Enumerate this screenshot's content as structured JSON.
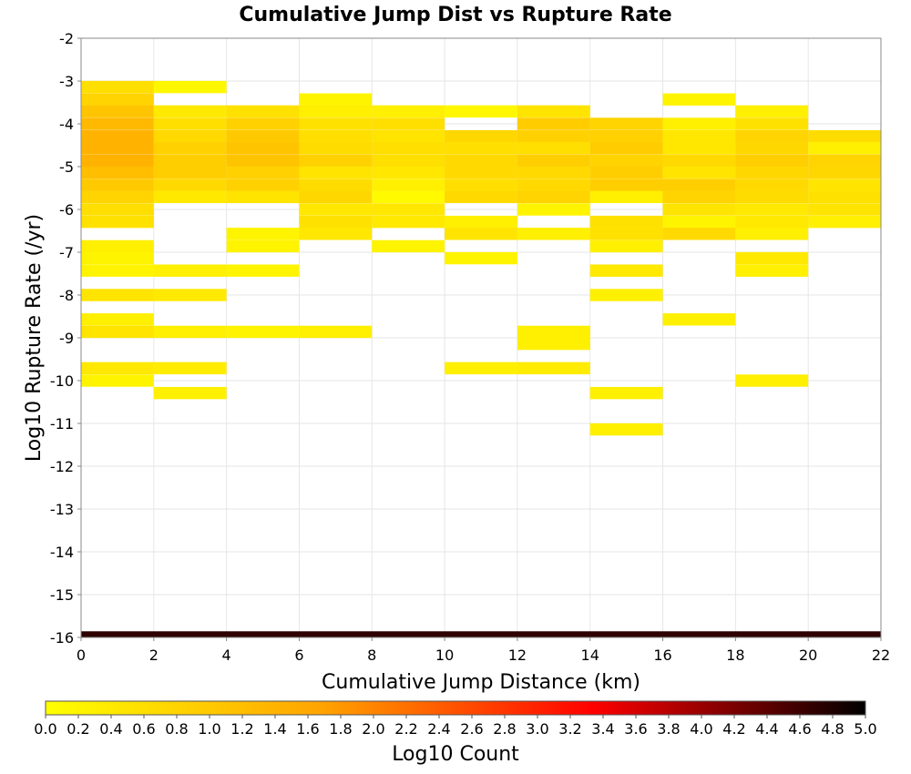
{
  "chart_data": {
    "type": "heatmap",
    "title": "Cumulative Jump Dist vs Rupture Rate",
    "xlabel": "Cumulative Jump Distance (km)",
    "ylabel": "Log10 Rupture Rate (/yr)",
    "xlim": [
      0,
      22
    ],
    "ylim": [
      -16,
      -2
    ],
    "x_ticks": [
      "0",
      "2",
      "4",
      "6",
      "8",
      "10",
      "12",
      "14",
      "16",
      "18",
      "20",
      "22"
    ],
    "y_ticks": [
      "-16",
      "-15",
      "-14",
      "-13",
      "-12",
      "-11",
      "-10",
      "-9",
      "-8",
      "-7",
      "-6",
      "-5",
      "-4",
      "-3",
      "-2"
    ],
    "x_bin_width": 2,
    "y_bin_height": 0.2857,
    "grid": true,
    "colorbar": {
      "label": "Log10 Count",
      "range": [
        0,
        5
      ],
      "ticks": [
        "0.0",
        "0.2",
        "0.4",
        "0.6",
        "0.8",
        "1.0",
        "1.2",
        "1.4",
        "1.6",
        "1.8",
        "2.0",
        "2.2",
        "2.4",
        "2.6",
        "2.8",
        "3.0",
        "3.2",
        "3.4",
        "3.6",
        "3.8",
        "4.0",
        "4.2",
        "4.4",
        "4.6",
        "4.8",
        "5.0"
      ],
      "colors": [
        "#ffff00",
        "#ffa500",
        "#ff0000",
        "#000000"
      ]
    },
    "cells": [
      [
        0,
        -3.14,
        0.6
      ],
      [
        0,
        -3.43,
        0.8
      ],
      [
        0,
        -3.71,
        1.1
      ],
      [
        0,
        -4.0,
        1.3
      ],
      [
        0,
        -4.29,
        1.4
      ],
      [
        0,
        -4.57,
        1.4
      ],
      [
        0,
        -4.86,
        1.4
      ],
      [
        0,
        -5.14,
        1.2
      ],
      [
        0,
        -5.43,
        1.0
      ],
      [
        0,
        -5.71,
        0.8
      ],
      [
        0,
        -6.0,
        0.6
      ],
      [
        0,
        -6.29,
        0.55
      ],
      [
        0,
        -6.86,
        0.3
      ],
      [
        0,
        -7.14,
        0.2
      ],
      [
        0,
        -7.43,
        0.2
      ],
      [
        0,
        -8.0,
        0.5
      ],
      [
        0,
        -8.57,
        0.3
      ],
      [
        0,
        -8.86,
        0.5
      ],
      [
        0,
        -9.71,
        0.4
      ],
      [
        0,
        -10.0,
        0.2
      ],
      [
        2,
        -3.14,
        0.15
      ],
      [
        2,
        -3.71,
        0.4
      ],
      [
        2,
        -4.0,
        0.6
      ],
      [
        2,
        -4.29,
        0.7
      ],
      [
        2,
        -4.57,
        0.85
      ],
      [
        2,
        -4.86,
        0.9
      ],
      [
        2,
        -5.14,
        0.9
      ],
      [
        2,
        -5.43,
        0.7
      ],
      [
        2,
        -5.71,
        0.4
      ],
      [
        2,
        -7.43,
        0.3
      ],
      [
        2,
        -8.0,
        0.4
      ],
      [
        2,
        -8.86,
        0.3
      ],
      [
        2,
        -9.71,
        0.35
      ],
      [
        2,
        -10.29,
        0.3
      ],
      [
        4,
        -3.71,
        0.55
      ],
      [
        4,
        -4.0,
        0.85
      ],
      [
        4,
        -4.29,
        1.0
      ],
      [
        4,
        -4.57,
        1.1
      ],
      [
        4,
        -4.86,
        1.1
      ],
      [
        4,
        -5.14,
        0.85
      ],
      [
        4,
        -5.43,
        0.85
      ],
      [
        4,
        -5.71,
        0.5
      ],
      [
        4,
        -6.57,
        0.2
      ],
      [
        4,
        -6.86,
        0.2
      ],
      [
        4,
        -7.43,
        0.2
      ],
      [
        4,
        -8.86,
        0.2
      ],
      [
        6,
        -3.43,
        0.2
      ],
      [
        6,
        -3.71,
        0.3
      ],
      [
        6,
        -4.0,
        0.55
      ],
      [
        6,
        -4.29,
        0.6
      ],
      [
        6,
        -4.57,
        0.65
      ],
      [
        6,
        -4.86,
        0.85
      ],
      [
        6,
        -5.14,
        0.5
      ],
      [
        6,
        -5.43,
        0.65
      ],
      [
        6,
        -5.71,
        0.75
      ],
      [
        6,
        -6.0,
        0.45
      ],
      [
        6,
        -6.29,
        0.55
      ],
      [
        6,
        -6.57,
        0.45
      ],
      [
        6,
        -8.86,
        0.3
      ],
      [
        8,
        -3.71,
        0.3
      ],
      [
        8,
        -4.0,
        0.6
      ],
      [
        8,
        -4.29,
        0.5
      ],
      [
        8,
        -4.57,
        0.6
      ],
      [
        8,
        -4.86,
        0.6
      ],
      [
        8,
        -5.14,
        0.45
      ],
      [
        8,
        -5.43,
        0.3
      ],
      [
        8,
        -5.71,
        0.1
      ],
      [
        8,
        -6.0,
        0.45
      ],
      [
        8,
        -6.29,
        0.4
      ],
      [
        8,
        -6.86,
        0.2
      ],
      [
        10,
        -3.71,
        0.15
      ],
      [
        10,
        -4.29,
        0.75
      ],
      [
        10,
        -4.57,
        0.6
      ],
      [
        10,
        -4.86,
        0.7
      ],
      [
        10,
        -5.14,
        0.7
      ],
      [
        10,
        -5.43,
        0.6
      ],
      [
        10,
        -5.71,
        0.7
      ],
      [
        10,
        -6.29,
        0.3
      ],
      [
        10,
        -6.57,
        0.5
      ],
      [
        10,
        -7.14,
        0.2
      ],
      [
        10,
        -9.71,
        0.3
      ],
      [
        12,
        -3.71,
        0.5
      ],
      [
        12,
        -4.0,
        0.95
      ],
      [
        12,
        -4.29,
        0.85
      ],
      [
        12,
        -4.57,
        0.6
      ],
      [
        12,
        -4.86,
        0.9
      ],
      [
        12,
        -5.14,
        0.7
      ],
      [
        12,
        -5.43,
        0.7
      ],
      [
        12,
        -5.71,
        0.8
      ],
      [
        12,
        -6.0,
        0.2
      ],
      [
        12,
        -6.57,
        0.3
      ],
      [
        12,
        -8.86,
        0.3
      ],
      [
        12,
        -9.14,
        0.3
      ],
      [
        12,
        -9.71,
        0.35
      ],
      [
        14,
        -4.0,
        0.8
      ],
      [
        14,
        -4.29,
        0.85
      ],
      [
        14,
        -4.57,
        0.95
      ],
      [
        14,
        -4.86,
        0.8
      ],
      [
        14,
        -5.14,
        0.9
      ],
      [
        14,
        -5.43,
        0.9
      ],
      [
        14,
        -5.71,
        0.3
      ],
      [
        14,
        -6.29,
        0.55
      ],
      [
        14,
        -6.57,
        0.55
      ],
      [
        14,
        -6.86,
        0.3
      ],
      [
        14,
        -7.43,
        0.4
      ],
      [
        14,
        -8.0,
        0.3
      ],
      [
        14,
        -10.29,
        0.3
      ],
      [
        14,
        -11.14,
        0.3
      ],
      [
        16,
        -3.43,
        0.2
      ],
      [
        16,
        -4.0,
        0.3
      ],
      [
        16,
        -4.29,
        0.45
      ],
      [
        16,
        -4.57,
        0.45
      ],
      [
        16,
        -4.86,
        0.7
      ],
      [
        16,
        -5.14,
        0.5
      ],
      [
        16,
        -5.43,
        0.9
      ],
      [
        16,
        -5.71,
        0.8
      ],
      [
        16,
        -6.0,
        0.5
      ],
      [
        16,
        -6.29,
        0.2
      ],
      [
        16,
        -6.57,
        0.7
      ],
      [
        16,
        -8.57,
        0.3
      ],
      [
        18,
        -3.71,
        0.3
      ],
      [
        18,
        -4.0,
        0.55
      ],
      [
        18,
        -4.29,
        0.8
      ],
      [
        18,
        -4.57,
        0.75
      ],
      [
        18,
        -4.86,
        0.9
      ],
      [
        18,
        -5.14,
        0.75
      ],
      [
        18,
        -5.43,
        0.7
      ],
      [
        18,
        -5.71,
        0.65
      ],
      [
        18,
        -6.0,
        0.4
      ],
      [
        18,
        -6.29,
        0.4
      ],
      [
        18,
        -6.57,
        0.3
      ],
      [
        18,
        -7.14,
        0.4
      ],
      [
        18,
        -7.43,
        0.3
      ],
      [
        18,
        -10.0,
        0.3
      ],
      [
        20,
        -4.29,
        0.65
      ],
      [
        20,
        -4.57,
        0.3
      ],
      [
        20,
        -4.86,
        0.8
      ],
      [
        20,
        -5.14,
        0.75
      ],
      [
        20,
        -5.43,
        0.5
      ],
      [
        20,
        -5.71,
        0.55
      ],
      [
        20,
        -6.0,
        0.5
      ],
      [
        20,
        -6.29,
        0.3
      ]
    ],
    "baseline_row": {
      "y": -16,
      "x_range": [
        0,
        22
      ],
      "value": 4.7
    }
  }
}
